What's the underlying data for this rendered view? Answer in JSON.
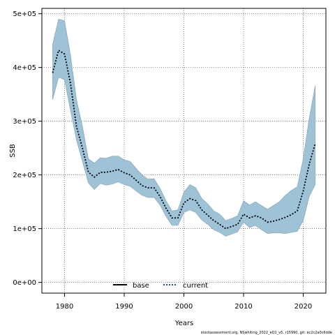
{
  "chart_data": {
    "type": "line",
    "xlabel": "Years",
    "ylabel": "SSB",
    "xlim": [
      1976.2,
      2023.8
    ],
    "ylim": [
      -20000,
      510000
    ],
    "x_ticks": [
      1980,
      1990,
      2000,
      2010,
      2020
    ],
    "x_tick_labels": [
      "1980",
      "1990",
      "2000",
      "2010",
      "2020"
    ],
    "y_ticks": [
      0,
      100000,
      200000,
      300000,
      400000,
      500000
    ],
    "y_tick_labels": [
      "0e+00",
      "1e+05",
      "2e+05",
      "3e+05",
      "4e+05",
      "5e+05"
    ],
    "grid": true,
    "legend_position": "bottom-center",
    "legend": [
      {
        "name": "base",
        "style": "solid",
        "color": "#000000"
      },
      {
        "name": "current",
        "style": "dotted",
        "color": "#1f4e9c"
      }
    ],
    "band_color": "#9ec2d6",
    "band_stroke": "#7f9fb3",
    "years": [
      1978,
      1979,
      1980,
      1981,
      1982,
      1983,
      1984,
      1985,
      1986,
      1987,
      1988,
      1989,
      1990,
      1991,
      1992,
      1993,
      1994,
      1995,
      1996,
      1997,
      1998,
      1999,
      2000,
      2001,
      2002,
      2003,
      2004,
      2005,
      2006,
      2007,
      2008,
      2009,
      2010,
      2011,
      2012,
      2013,
      2014,
      2015,
      2016,
      2017,
      2018,
      2019,
      2020,
      2021,
      2022
    ],
    "series": [
      {
        "name": "current",
        "values": [
          390000,
          432000,
          425000,
          370000,
          290000,
          250000,
          205000,
          196000,
          205000,
          205000,
          207000,
          210000,
          204000,
          200000,
          190000,
          180000,
          176000,
          176000,
          160000,
          138000,
          120000,
          120000,
          148000,
          156000,
          152000,
          135000,
          125000,
          115000,
          108000,
          100000,
          104000,
          108000,
          127000,
          120000,
          124000,
          120000,
          112000,
          114000,
          117000,
          121000,
          126000,
          133000,
          170000,
          220000,
          258000
        ]
      }
    ],
    "band": {
      "upper": [
        443000,
        490000,
        487000,
        423000,
        340000,
        290000,
        230000,
        222000,
        232000,
        231000,
        235000,
        235000,
        228000,
        225000,
        212000,
        200000,
        192000,
        193000,
        175000,
        152000,
        133000,
        135000,
        168000,
        182000,
        176000,
        156000,
        146000,
        133000,
        127000,
        115000,
        119000,
        124000,
        152000,
        144000,
        150000,
        143000,
        136000,
        143000,
        150000,
        162000,
        171000,
        178000,
        230000,
        305000,
        366000
      ],
      "lower": [
        340000,
        382000,
        377000,
        320000,
        265000,
        225000,
        185000,
        173000,
        184000,
        181000,
        183000,
        187000,
        182000,
        179000,
        170000,
        162000,
        158000,
        158000,
        144000,
        123000,
        106000,
        106000,
        130000,
        135000,
        130000,
        116000,
        108000,
        98000,
        93000,
        86000,
        90000,
        94000,
        112000,
        102000,
        106000,
        98000,
        91000,
        92000,
        92000,
        91000,
        93000,
        95000,
        115000,
        160000,
        182000
      ]
    }
  },
  "footer": "stockassessment.org, NSwhiting_2022_eQ1_v5, r15990, git: ec2c2a0c6dde"
}
